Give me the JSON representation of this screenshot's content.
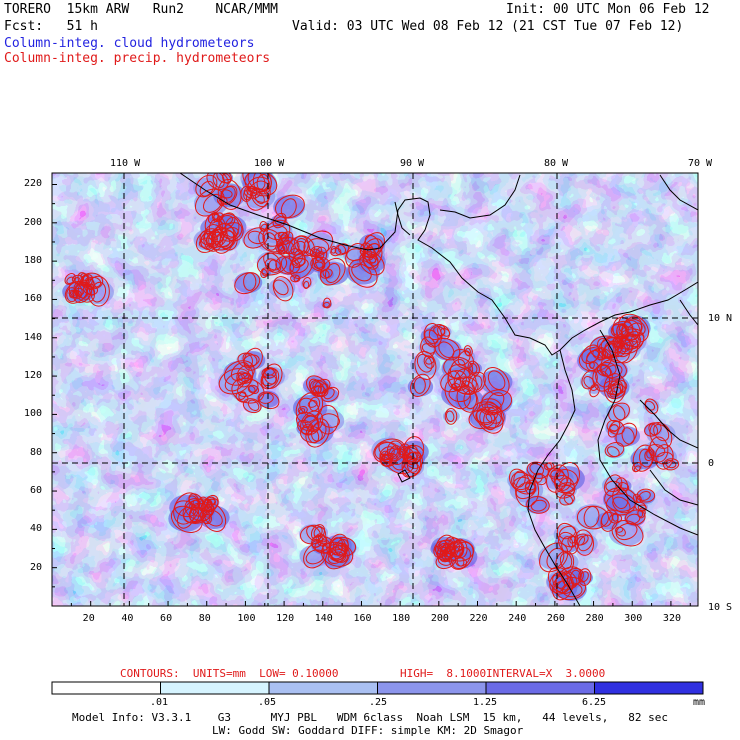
{
  "header": {
    "model": "TORERO  15km ARW   Run2    NCAR/MMM",
    "init": "Init: 00 UTC Mon 06 Feb 12",
    "fcst": "Fcst:   51 h",
    "valid": "Valid: 03 UTC Wed 08 Feb 12 (21 CST Tue 07 Feb 12)",
    "cloud_label": "Column-integ. cloud hydrometeors",
    "precip_label": "Column-integ. precip. hydrometeors"
  },
  "map": {
    "lon_labels": [
      "110 W",
      "100 W",
      "90 W",
      "80 W",
      "70 W"
    ],
    "lat_labels": [
      "10 N",
      "0",
      "10 S"
    ],
    "x_ticks": [
      "20",
      "40",
      "60",
      "80",
      "100",
      "120",
      "140",
      "160",
      "180",
      "200",
      "220",
      "240",
      "260",
      "280",
      "300",
      "320"
    ],
    "y_ticks": [
      "220",
      "200",
      "180",
      "160",
      "140",
      "120",
      "100",
      "80",
      "60",
      "40",
      "20"
    ],
    "colors": {
      "shade1": "#d6f4ff",
      "shade2": "#aac0f2",
      "shade3": "#8c95ec",
      "shade4": "#6b6be6",
      "shade5": "#3030e0",
      "contour": "#e01a1a",
      "coast": "#000000"
    }
  },
  "contours_text": {
    "units": "CONTOURS:  UNITS=mm  LOW= 0.10000",
    "high": "HIGH=  8.1000",
    "interval": "INTERVAL=X  3.0000"
  },
  "colorbar": {
    "labels": [
      ".01",
      ".05",
      ".25",
      "1.25",
      "6.25"
    ],
    "unit": "mm",
    "colors": [
      "#ffffff",
      "#d6f4ff",
      "#aac0f2",
      "#8c95ec",
      "#6b6be6",
      "#3030e0",
      "#2020e8"
    ]
  },
  "footer": {
    "line1": "Model Info: V3.3.1    G3      MYJ PBL   WDM 6class  Noah LSM  15 km,   44 levels,   82 sec",
    "line2": "LW: Godd SW: Goddard DIFF: simple KM: 2D Smagor"
  }
}
